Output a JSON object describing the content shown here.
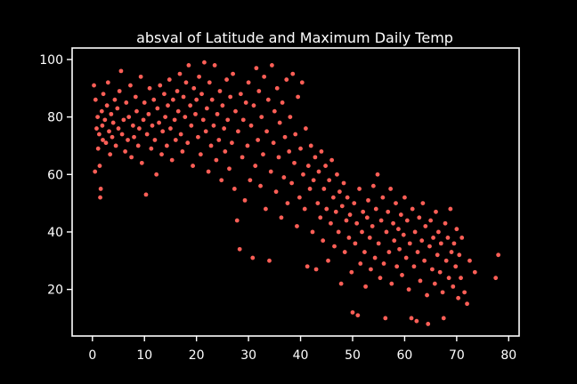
{
  "chart_data": {
    "type": "scatter",
    "title": "absval of Latitude and Maximum Daily Temp",
    "xlabel": "",
    "ylabel": "",
    "xlim": [
      -3.9,
      82
    ],
    "ylim": [
      3.8,
      104
    ],
    "xticks": [
      0,
      10,
      20,
      30,
      40,
      50,
      60,
      70,
      80
    ],
    "yticks": [
      20,
      40,
      60,
      80,
      100
    ],
    "grid": false,
    "legend": "none",
    "colors": {
      "background": "#000000",
      "axes": "#ffffff",
      "text": "#ffffff",
      "marker": "#ff5f57"
    },
    "series": [
      {
        "points": [
          [
            0.3,
            91
          ],
          [
            0.5,
            61
          ],
          [
            0.6,
            86
          ],
          [
            0.8,
            76
          ],
          [
            1.0,
            80
          ],
          [
            1.1,
            69
          ],
          [
            1.3,
            74
          ],
          [
            1.4,
            63
          ],
          [
            1.5,
            52
          ],
          [
            1.6,
            55
          ],
          [
            1.8,
            82
          ],
          [
            1.9,
            77
          ],
          [
            2.0,
            72
          ],
          [
            2.1,
            88
          ],
          [
            2.4,
            79
          ],
          [
            2.6,
            71
          ],
          [
            2.8,
            84
          ],
          [
            3.0,
            92
          ],
          [
            3.2,
            75
          ],
          [
            3.4,
            67
          ],
          [
            3.6,
            81
          ],
          [
            3.8,
            73
          ],
          [
            4.0,
            78
          ],
          [
            4.3,
            86
          ],
          [
            4.5,
            70
          ],
          [
            4.8,
            83
          ],
          [
            5.0,
            76
          ],
          [
            5.2,
            89
          ],
          [
            5.5,
            96
          ],
          [
            5.7,
            74
          ],
          [
            6.0,
            79
          ],
          [
            6.3,
            68
          ],
          [
            6.5,
            85
          ],
          [
            6.8,
            72
          ],
          [
            7.0,
            80
          ],
          [
            7.3,
            91
          ],
          [
            7.5,
            66
          ],
          [
            7.8,
            77
          ],
          [
            8.0,
            73
          ],
          [
            8.3,
            87
          ],
          [
            8.5,
            82
          ],
          [
            8.8,
            70
          ],
          [
            9.0,
            76
          ],
          [
            9.3,
            94
          ],
          [
            9.5,
            64
          ],
          [
            9.8,
            79
          ],
          [
            10.0,
            85
          ],
          [
            10.3,
            53
          ],
          [
            10.5,
            74
          ],
          [
            10.8,
            81
          ],
          [
            11.0,
            90
          ],
          [
            11.3,
            69
          ],
          [
            11.5,
            77
          ],
          [
            11.8,
            86
          ],
          [
            12.0,
            72
          ],
          [
            12.3,
            60
          ],
          [
            12.5,
            83
          ],
          [
            12.8,
            78
          ],
          [
            13.0,
            91
          ],
          [
            13.3,
            67
          ],
          [
            13.5,
            75
          ],
          [
            13.8,
            88
          ],
          [
            14.0,
            80
          ],
          [
            14.3,
            70
          ],
          [
            14.5,
            84
          ],
          [
            14.8,
            93
          ],
          [
            15.0,
            76
          ],
          [
            15.3,
            65
          ],
          [
            15.5,
            86
          ],
          [
            15.8,
            79
          ],
          [
            16.0,
            72
          ],
          [
            16.3,
            89
          ],
          [
            16.5,
            82
          ],
          [
            16.8,
            95
          ],
          [
            17.0,
            74
          ],
          [
            17.3,
            68
          ],
          [
            17.5,
            87
          ],
          [
            17.8,
            80
          ],
          [
            18.0,
            92
          ],
          [
            18.3,
            71
          ],
          [
            18.5,
            98
          ],
          [
            18.8,
            84
          ],
          [
            19.0,
            77
          ],
          [
            19.3,
            63
          ],
          [
            19.5,
            90
          ],
          [
            19.8,
            81
          ],
          [
            20.0,
            86
          ],
          [
            20.3,
            73
          ],
          [
            20.5,
            94
          ],
          [
            20.8,
            67
          ],
          [
            21.0,
            88
          ],
          [
            21.3,
            79
          ],
          [
            21.5,
            99
          ],
          [
            21.8,
            75
          ],
          [
            22.0,
            83
          ],
          [
            22.3,
            61
          ],
          [
            22.5,
            92
          ],
          [
            22.8,
            70
          ],
          [
            23.0,
            86
          ],
          [
            23.3,
            77
          ],
          [
            23.5,
            98
          ],
          [
            23.8,
            65
          ],
          [
            24.0,
            81
          ],
          [
            24.3,
            72
          ],
          [
            24.5,
            89
          ],
          [
            24.8,
            58
          ],
          [
            25.0,
            84
          ],
          [
            25.3,
            76
          ],
          [
            25.5,
            68
          ],
          [
            25.8,
            93
          ],
          [
            26.0,
            79
          ],
          [
            26.3,
            62
          ],
          [
            26.5,
            87
          ],
          [
            26.8,
            71
          ],
          [
            27.0,
            95
          ],
          [
            27.3,
            55
          ],
          [
            27.5,
            82
          ],
          [
            27.8,
            44
          ],
          [
            28.0,
            75
          ],
          [
            28.3,
            34
          ],
          [
            28.5,
            88
          ],
          [
            28.8,
            66
          ],
          [
            29.0,
            79
          ],
          [
            29.3,
            51
          ],
          [
            29.5,
            85
          ],
          [
            29.8,
            70
          ],
          [
            30.0,
            92
          ],
          [
            30.3,
            58
          ],
          [
            30.5,
            77
          ],
          [
            30.8,
            31
          ],
          [
            31.0,
            84
          ],
          [
            31.3,
            63
          ],
          [
            31.5,
            97
          ],
          [
            31.8,
            72
          ],
          [
            32.0,
            89
          ],
          [
            32.3,
            56
          ],
          [
            32.5,
            80
          ],
          [
            32.8,
            67
          ],
          [
            33.0,
            94
          ],
          [
            33.3,
            48
          ],
          [
            33.5,
            75
          ],
          [
            33.8,
            86
          ],
          [
            34.0,
            30
          ],
          [
            34.3,
            61
          ],
          [
            34.5,
            98
          ],
          [
            34.8,
            71
          ],
          [
            35.0,
            82
          ],
          [
            35.3,
            54
          ],
          [
            35.5,
            90
          ],
          [
            35.8,
            66
          ],
          [
            36.0,
            78
          ],
          [
            36.3,
            45
          ],
          [
            36.5,
            85
          ],
          [
            36.8,
            59
          ],
          [
            37.0,
            73
          ],
          [
            37.3,
            93
          ],
          [
            37.5,
            50
          ],
          [
            37.8,
            68
          ],
          [
            38.0,
            80
          ],
          [
            38.3,
            57
          ],
          [
            38.5,
            95
          ],
          [
            38.8,
            64
          ],
          [
            39.0,
            74
          ],
          [
            39.3,
            42
          ],
          [
            39.5,
            87
          ],
          [
            39.8,
            52
          ],
          [
            40.0,
            69
          ],
          [
            40.3,
            92
          ],
          [
            40.5,
            60
          ],
          [
            40.8,
            48
          ],
          [
            41.0,
            76
          ],
          [
            41.3,
            28
          ],
          [
            41.5,
            63
          ],
          [
            41.8,
            55
          ],
          [
            42.0,
            70
          ],
          [
            42.3,
            40
          ],
          [
            42.5,
            58
          ],
          [
            42.8,
            66
          ],
          [
            43.0,
            27
          ],
          [
            43.3,
            50
          ],
          [
            43.5,
            61
          ],
          [
            43.8,
            45
          ],
          [
            44.0,
            68
          ],
          [
            44.3,
            37
          ],
          [
            44.5,
            55
          ],
          [
            44.8,
            63
          ],
          [
            45.0,
            48
          ],
          [
            45.3,
            30
          ],
          [
            45.5,
            58
          ],
          [
            45.8,
            43
          ],
          [
            46.0,
            65
          ],
          [
            46.3,
            52
          ],
          [
            46.5,
            35
          ],
          [
            46.8,
            47
          ],
          [
            47.0,
            60
          ],
          [
            47.3,
            40
          ],
          [
            47.5,
            54
          ],
          [
            47.8,
            22
          ],
          [
            48.0,
            49
          ],
          [
            48.3,
            57
          ],
          [
            48.5,
            33
          ],
          [
            48.8,
            44
          ],
          [
            49.0,
            52
          ],
          [
            49.3,
            38
          ],
          [
            49.5,
            46
          ],
          [
            49.8,
            26
          ],
          [
            50.0,
            12
          ],
          [
            50.3,
            50
          ],
          [
            50.5,
            36
          ],
          [
            50.8,
            43
          ],
          [
            51.0,
            11
          ],
          [
            51.3,
            55
          ],
          [
            51.5,
            29
          ],
          [
            51.8,
            40
          ],
          [
            52.0,
            47
          ],
          [
            52.3,
            33
          ],
          [
            52.5,
            21
          ],
          [
            52.8,
            45
          ],
          [
            53.0,
            51
          ],
          [
            53.3,
            38
          ],
          [
            53.5,
            27
          ],
          [
            53.8,
            42
          ],
          [
            54.0,
            56
          ],
          [
            54.3,
            31
          ],
          [
            54.5,
            48
          ],
          [
            54.8,
            60
          ],
          [
            55.0,
            36
          ],
          [
            55.3,
            24
          ],
          [
            55.5,
            44
          ],
          [
            55.8,
            52
          ],
          [
            56.0,
            29
          ],
          [
            56.3,
            10
          ],
          [
            56.5,
            40
          ],
          [
            56.8,
            47
          ],
          [
            57.0,
            33
          ],
          [
            57.3,
            55
          ],
          [
            57.5,
            22
          ],
          [
            57.8,
            43
          ],
          [
            58.0,
            37
          ],
          [
            58.3,
            50
          ],
          [
            58.5,
            28
          ],
          [
            58.8,
            41
          ],
          [
            59.0,
            34
          ],
          [
            59.3,
            46
          ],
          [
            59.5,
            25
          ],
          [
            59.8,
            39
          ],
          [
            60.0,
            52
          ],
          [
            60.3,
            31
          ],
          [
            60.5,
            44
          ],
          [
            60.8,
            20
          ],
          [
            61.0,
            36
          ],
          [
            61.3,
            10
          ],
          [
            61.5,
            48
          ],
          [
            61.8,
            28
          ],
          [
            62.0,
            40
          ],
          [
            62.3,
            9
          ],
          [
            62.5,
            33
          ],
          [
            62.8,
            45
          ],
          [
            63.0,
            23
          ],
          [
            63.3,
            37
          ],
          [
            63.5,
            50
          ],
          [
            63.8,
            30
          ],
          [
            64.0,
            42
          ],
          [
            64.3,
            18
          ],
          [
            64.5,
            8
          ],
          [
            64.8,
            35
          ],
          [
            65.0,
            44
          ],
          [
            65.3,
            27
          ],
          [
            65.5,
            38
          ],
          [
            65.8,
            22
          ],
          [
            66.0,
            47
          ],
          [
            66.3,
            32
          ],
          [
            66.5,
            40
          ],
          [
            66.8,
            26
          ],
          [
            67.0,
            36
          ],
          [
            67.3,
            19
          ],
          [
            67.5,
            10
          ],
          [
            67.8,
            43
          ],
          [
            68.0,
            30
          ],
          [
            68.3,
            38
          ],
          [
            68.5,
            24
          ],
          [
            68.8,
            48
          ],
          [
            69.0,
            33
          ],
          [
            69.3,
            21
          ],
          [
            69.5,
            36
          ],
          [
            69.8,
            28
          ],
          [
            70.0,
            41
          ],
          [
            70.3,
            17
          ],
          [
            70.5,
            32
          ],
          [
            70.8,
            24
          ],
          [
            71.0,
            38
          ],
          [
            71.5,
            19
          ],
          [
            72.0,
            15
          ],
          [
            72.5,
            30
          ],
          [
            73.5,
            26
          ],
          [
            77.5,
            24
          ],
          [
            78.0,
            32
          ]
        ]
      }
    ]
  }
}
